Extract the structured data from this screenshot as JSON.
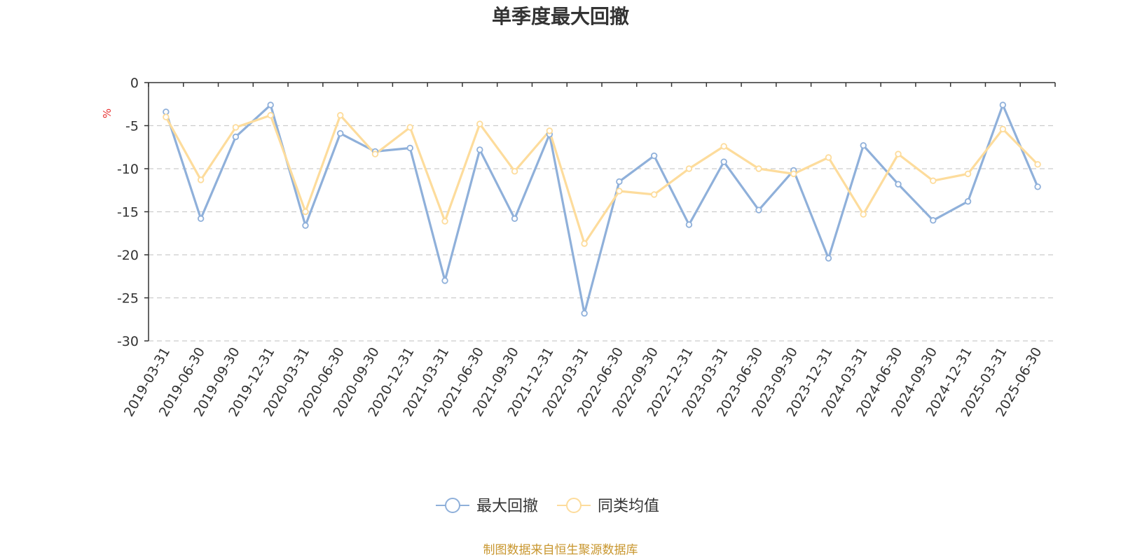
{
  "chart_data": {
    "type": "line",
    "title": "单季度最大回撤",
    "ylabel": "%",
    "xlabel": "",
    "ylim": [
      -30,
      0
    ],
    "yticks": [
      0,
      -5,
      -10,
      -15,
      -20,
      -25,
      -30
    ],
    "grid": true,
    "legend_position": "bottom",
    "categories": [
      "2019-03-31",
      "2019-06-30",
      "2019-09-30",
      "2019-12-31",
      "2020-03-31",
      "2020-06-30",
      "2020-09-30",
      "2020-12-31",
      "2021-03-31",
      "2021-06-30",
      "2021-09-30",
      "2021-12-31",
      "2022-03-31",
      "2022-06-30",
      "2022-09-30",
      "2022-12-31",
      "2023-03-31",
      "2023-06-30",
      "2023-09-30",
      "2023-12-31",
      "2024-03-31",
      "2024-06-30",
      "2024-09-30",
      "2024-12-31",
      "2025-03-31",
      "2025-06-30"
    ],
    "series": [
      {
        "name": "最大回撤",
        "color": "#8fb0da",
        "values": [
          -3.4,
          -15.8,
          -6.3,
          -2.6,
          -16.6,
          -5.9,
          -8.0,
          -7.6,
          -23.0,
          -7.8,
          -15.8,
          -6.0,
          -26.8,
          -11.5,
          -8.5,
          -16.5,
          -9.2,
          -14.8,
          -10.2,
          -20.4,
          -7.3,
          -11.8,
          -16.0,
          -13.8,
          -2.6,
          -12.1
        ]
      },
      {
        "name": "同类均值",
        "color": "#fddc9c",
        "values": [
          -4.0,
          -11.3,
          -5.2,
          -3.8,
          -15.0,
          -3.8,
          -8.3,
          -5.2,
          -16.1,
          -4.8,
          -10.3,
          -5.6,
          -18.7,
          -12.6,
          -13.0,
          -10.0,
          -7.4,
          -10.0,
          -10.6,
          -8.7,
          -15.3,
          -8.3,
          -11.4,
          -10.6,
          -5.4,
          -9.5
        ]
      }
    ],
    "source": "制图数据来自恒生聚源数据库"
  },
  "colors": {
    "axis": "#333333",
    "grid": "#cccccc",
    "unit": "#e83030",
    "source": "#c8962e"
  }
}
